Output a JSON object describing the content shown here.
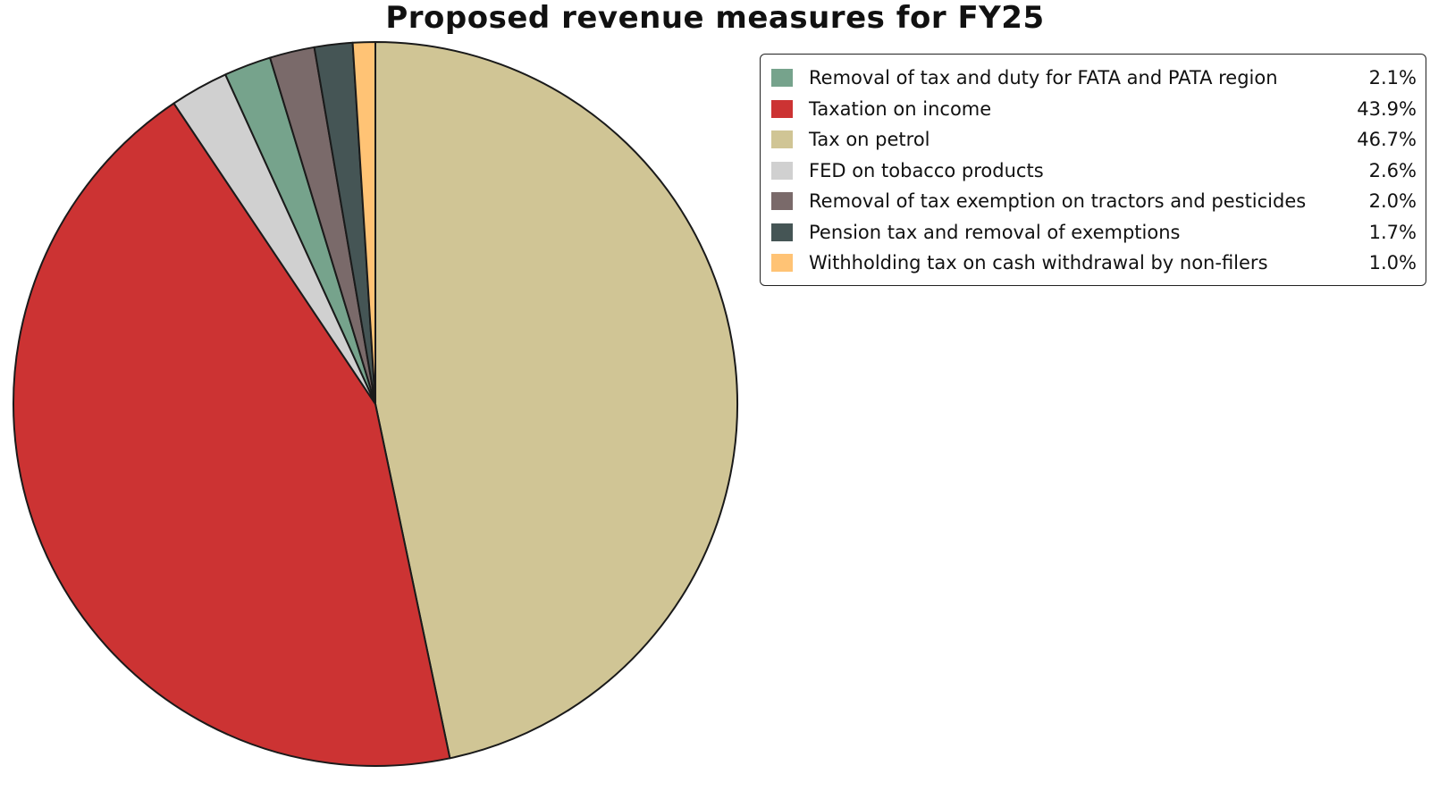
{
  "chart_data": {
    "type": "pie",
    "title": "Proposed revenue measures for FY25",
    "legend_position": "top-right",
    "slices": [
      {
        "label": "Removal of tax and duty for FATA and PATA region",
        "value": 2.1,
        "value_label": "2.1%",
        "color": "#76a38c"
      },
      {
        "label": "Taxation on income",
        "value": 43.9,
        "value_label": "43.9%",
        "color": "#cc3333"
      },
      {
        "label": "Tax on petrol",
        "value": 46.7,
        "value_label": "46.7%",
        "color": "#d0c595"
      },
      {
        "label": "FED on tobacco products",
        "value": 2.6,
        "value_label": "2.6%",
        "color": "#d0d0d0"
      },
      {
        "label": "Removal of tax exemption on tractors and pesticides",
        "value": 2.0,
        "value_label": "2.0%",
        "color": "#7a6a6a"
      },
      {
        "label": "Pension tax and removal of exemptions",
        "value": 1.7,
        "value_label": "1.7%",
        "color": "#455555"
      },
      {
        "label": "Withholding tax on cash withdrawal by non-filers",
        "value": 1.0,
        "value_label": "1.0%",
        "color": "#ffc375"
      }
    ],
    "draw_order": [
      "Tax on petrol",
      "Taxation on income",
      "FED on tobacco products",
      "Removal of tax and duty for FATA and PATA region",
      "Removal of tax exemption on tractors and pesticides",
      "Pension tax and removal of exemptions",
      "Withholding tax on cash withdrawal by non-filers"
    ],
    "start": "12 o'clock",
    "direction": "clockwise"
  }
}
